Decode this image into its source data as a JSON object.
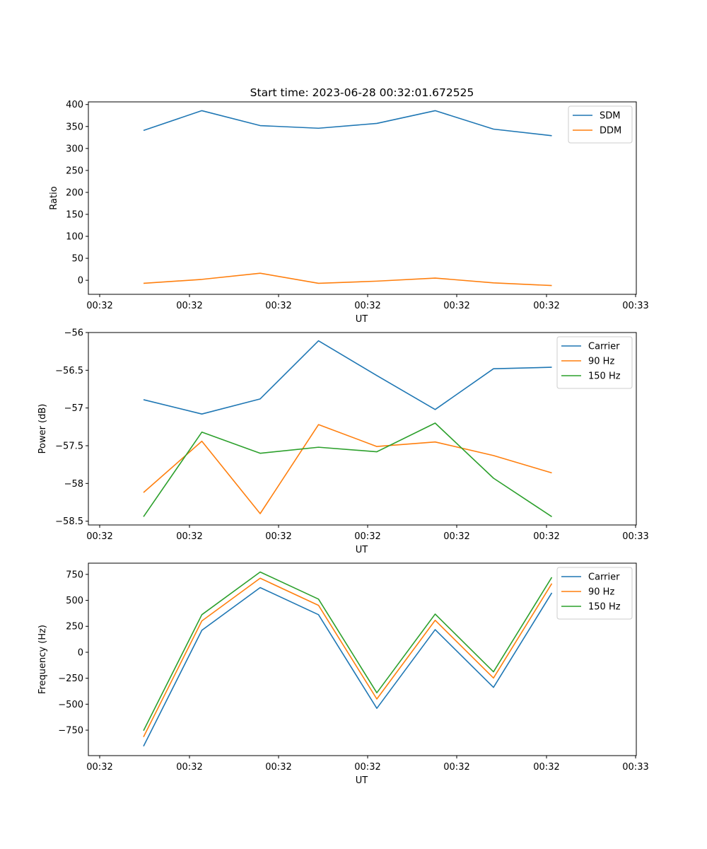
{
  "figure": {
    "title": "Start time: 2023-06-28 00:32:01.672525"
  },
  "x_ticks": [
    "00:32",
    "00:32",
    "00:32",
    "00:32",
    "00:32",
    "00:32",
    "00:33"
  ],
  "chart_data": [
    {
      "type": "line",
      "title": "Start time: 2023-06-28 00:32:01.672525",
      "xlabel": "UT",
      "ylabel": "Ratio",
      "legend": "top-right",
      "grid": false,
      "ylim": [
        -32,
        406
      ],
      "yticks": [
        0,
        50,
        100,
        150,
        200,
        250,
        300,
        350,
        400
      ],
      "series": [
        {
          "name": "SDM",
          "color": "#1f77b4",
          "values": [
            341,
            386,
            352,
            346,
            357,
            386,
            344,
            329
          ]
        },
        {
          "name": "DDM",
          "color": "#ff7f0e",
          "values": [
            -7,
            2,
            16,
            -7,
            -2,
            5,
            -6,
            -12
          ]
        }
      ]
    },
    {
      "type": "line",
      "title": "",
      "xlabel": "UT",
      "ylabel": "Power (dB)",
      "legend": "top-right",
      "grid": false,
      "ylim": [
        -58.55,
        -56.0
      ],
      "yticks": [
        -56.0,
        -56.5,
        -57.0,
        -57.5,
        -58.0,
        -58.5
      ],
      "series": [
        {
          "name": "Carrier",
          "color": "#1f77b4",
          "values": [
            -56.89,
            -57.08,
            -56.88,
            -56.11,
            -56.57,
            -57.02,
            -56.48,
            -56.46
          ]
        },
        {
          "name": "90 Hz",
          "color": "#ff7f0e",
          "values": [
            -58.12,
            -57.44,
            -58.4,
            -57.22,
            -57.51,
            -57.45,
            -57.63,
            -57.86
          ]
        },
        {
          "name": "150 Hz",
          "color": "#2ca02c",
          "values": [
            -58.44,
            -57.32,
            -57.6,
            -57.52,
            -57.58,
            -57.2,
            -57.93,
            -58.44
          ]
        }
      ]
    },
    {
      "type": "line",
      "title": "",
      "xlabel": "UT",
      "ylabel": "Frequency (Hz)",
      "legend": "top-right",
      "grid": false,
      "ylim": [
        -995,
        858
      ],
      "yticks": [
        -750,
        -500,
        -250,
        0,
        250,
        500,
        750
      ],
      "series": [
        {
          "name": "Carrier",
          "color": "#1f77b4",
          "values": [
            -905,
            212,
            623,
            362,
            -540,
            218,
            -338,
            572
          ]
        },
        {
          "name": "90 Hz",
          "color": "#ff7f0e",
          "values": [
            -815,
            302,
            713,
            452,
            -450,
            308,
            -248,
            662
          ]
        },
        {
          "name": "150 Hz",
          "color": "#2ca02c",
          "values": [
            -755,
            362,
            773,
            512,
            -390,
            368,
            -188,
            722
          ]
        }
      ]
    }
  ]
}
